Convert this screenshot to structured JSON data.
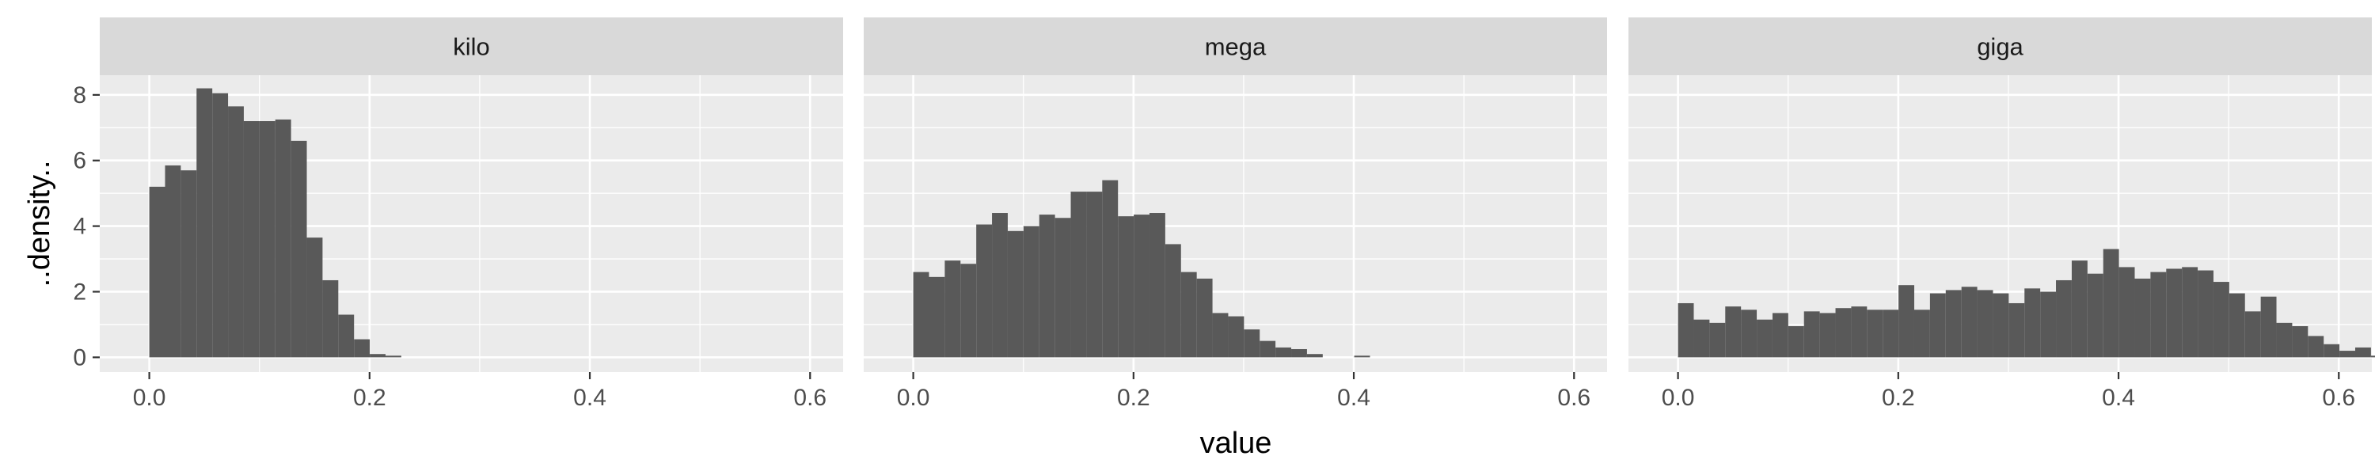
{
  "chart_data": {
    "type": "bar",
    "subtype": "faceted-histogram",
    "xlabel": "value",
    "ylabel": "..density..",
    "xlim": [
      -0.045,
      0.63
    ],
    "ylim": [
      -0.45,
      8.6
    ],
    "x_ticks": [
      "0.0",
      "0.2",
      "0.4",
      "0.6"
    ],
    "x_tick_values": [
      0.0,
      0.2,
      0.4,
      0.6
    ],
    "y_ticks": [
      "0",
      "2",
      "4",
      "6",
      "8"
    ],
    "y_tick_values": [
      0,
      2,
      4,
      6,
      8
    ],
    "grid": true,
    "bar_color": "#595959",
    "panel_background": "#ebebeb",
    "bin_width": 0.0143,
    "panels": [
      {
        "label": "kilo",
        "bin_start": 0.0,
        "values": [
          5.2,
          5.85,
          5.7,
          8.2,
          8.05,
          7.65,
          7.2,
          7.2,
          7.25,
          6.6,
          3.65,
          2.35,
          1.3,
          0.55,
          0.1,
          0.05
        ]
      },
      {
        "label": "mega",
        "bin_start": 0.0,
        "values": [
          2.6,
          2.45,
          2.95,
          2.85,
          4.05,
          4.4,
          3.85,
          4.0,
          4.35,
          4.25,
          5.05,
          5.05,
          5.4,
          4.3,
          4.35,
          4.4,
          3.45,
          2.6,
          2.4,
          1.35,
          1.25,
          0.85,
          0.5,
          0.3,
          0.25,
          0.1,
          0.0,
          0.0,
          0.05
        ]
      },
      {
        "label": "giga",
        "bin_start": 0.0,
        "values": [
          1.65,
          1.15,
          1.05,
          1.55,
          1.45,
          1.15,
          1.35,
          0.95,
          1.4,
          1.35,
          1.5,
          1.55,
          1.45,
          1.45,
          2.2,
          1.45,
          1.95,
          2.05,
          2.15,
          2.05,
          1.95,
          1.65,
          2.1,
          2.0,
          2.35,
          2.95,
          2.55,
          3.3,
          2.75,
          2.4,
          2.6,
          2.7,
          2.75,
          2.65,
          2.3,
          1.95,
          1.4,
          1.85,
          1.05,
          0.95,
          0.65,
          0.4,
          0.2,
          0.3,
          0.05
        ]
      }
    ]
  }
}
